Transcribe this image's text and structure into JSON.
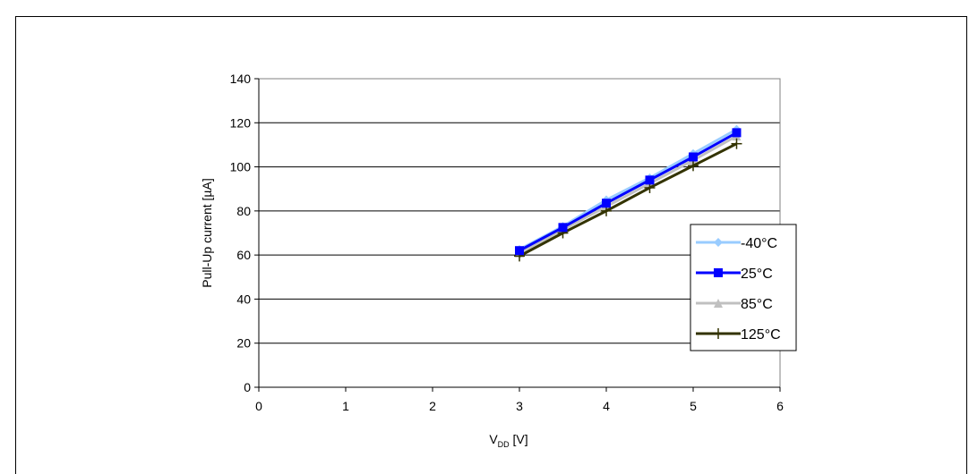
{
  "chart_data": {
    "type": "line",
    "title": "",
    "xlabel_main": "V",
    "xlabel_sub": "DD",
    "xlabel_unit": " [V]",
    "ylabel": "Pull-Up current [µA]",
    "xlim": [
      0,
      6
    ],
    "ylim": [
      0,
      140
    ],
    "xticks": [
      0,
      1,
      2,
      3,
      4,
      5,
      6
    ],
    "yticks": [
      0,
      20,
      40,
      60,
      80,
      100,
      120,
      140
    ],
    "grid": "horizontal",
    "legend_position": "right",
    "x": [
      3,
      3.5,
      4,
      4.5,
      5,
      5.5
    ],
    "series": [
      {
        "name": "-40°C",
        "values": [
          62.5,
          73,
          85,
          95,
          106,
          117
        ],
        "color": "#99ccff",
        "marker": "diamond"
      },
      {
        "name": "25°C",
        "values": [
          62,
          72.5,
          83.5,
          94,
          104.5,
          115.5
        ],
        "color": "#0000ff",
        "marker": "square"
      },
      {
        "name": "85°C",
        "values": [
          61,
          71.5,
          82,
          92.5,
          103,
          114
        ],
        "color": "#c0c0c0",
        "marker": "triangle"
      },
      {
        "name": "125°C",
        "values": [
          59.5,
          70,
          80,
          90.5,
          100.5,
          110.5
        ],
        "color": "#333300",
        "marker": "cross"
      }
    ]
  }
}
